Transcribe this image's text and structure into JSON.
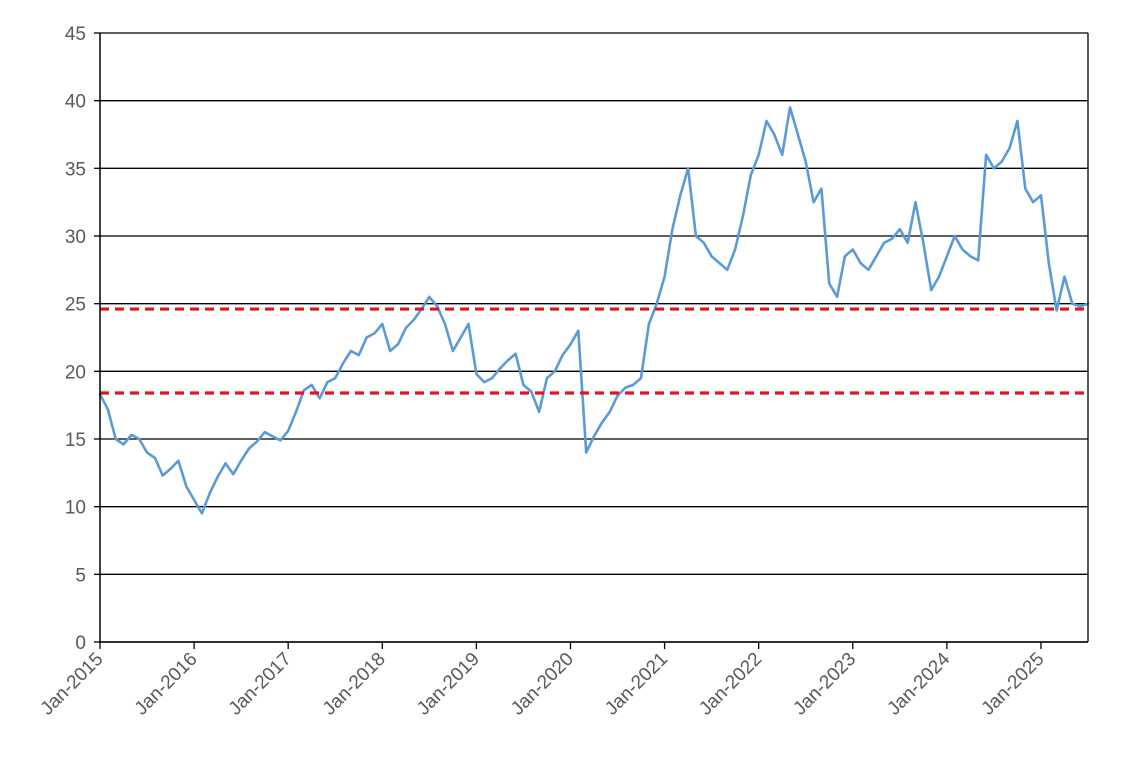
{
  "chart_data": {
    "type": "line",
    "title": "",
    "xlabel": "",
    "ylabel": "",
    "ylim": [
      0,
      45
    ],
    "y_ticks": [
      "0",
      "5",
      "10",
      "15",
      "20",
      "25",
      "30",
      "35",
      "40",
      "45"
    ],
    "x_ticks": [
      "Jan-2015",
      "Jan-2016",
      "Jan-2017",
      "Jan-2018",
      "Jan-2019",
      "Jan-2020",
      "Jan-2021",
      "Jan-2022",
      "Jan-2023",
      "Jan-2024",
      "Jan-2025"
    ],
    "xlim": [
      "2015-01",
      "2025-07"
    ],
    "grid": "horizontal",
    "legend": "none",
    "series": [
      {
        "color": "#5B9BD5",
        "x": [
          "2015-01",
          "2015-02",
          "2015-03",
          "2015-04",
          "2015-05",
          "2015-06",
          "2015-07",
          "2015-08",
          "2015-09",
          "2015-10",
          "2015-11",
          "2015-12",
          "2016-01",
          "2016-02",
          "2016-03",
          "2016-04",
          "2016-05",
          "2016-06",
          "2016-07",
          "2016-08",
          "2016-09",
          "2016-10",
          "2016-11",
          "2016-12",
          "2017-01",
          "2017-02",
          "2017-03",
          "2017-04",
          "2017-05",
          "2017-06",
          "2017-07",
          "2017-08",
          "2017-09",
          "2017-10",
          "2017-11",
          "2017-12",
          "2018-01",
          "2018-02",
          "2018-03",
          "2018-04",
          "2018-05",
          "2018-06",
          "2018-07",
          "2018-08",
          "2018-09",
          "2018-10",
          "2018-11",
          "2018-12",
          "2019-01",
          "2019-02",
          "2019-03",
          "2019-04",
          "2019-05",
          "2019-06",
          "2019-07",
          "2019-08",
          "2019-09",
          "2019-10",
          "2019-11",
          "2019-12",
          "2020-01",
          "2020-02",
          "2020-03",
          "2020-04",
          "2020-05",
          "2020-06",
          "2020-07",
          "2020-08",
          "2020-09",
          "2020-10",
          "2020-11",
          "2020-12",
          "2021-01",
          "2021-02",
          "2021-03",
          "2021-04",
          "2021-05",
          "2021-06",
          "2021-07",
          "2021-08",
          "2021-09",
          "2021-10",
          "2021-11",
          "2021-12",
          "2022-01",
          "2022-02",
          "2022-03",
          "2022-04",
          "2022-05",
          "2022-06",
          "2022-07",
          "2022-08",
          "2022-09",
          "2022-10",
          "2022-11",
          "2022-12",
          "2023-01",
          "2023-02",
          "2023-03",
          "2023-04",
          "2023-05",
          "2023-06",
          "2023-07",
          "2023-08",
          "2023-09",
          "2023-10",
          "2023-11",
          "2023-12",
          "2024-01",
          "2024-02",
          "2024-03",
          "2024-04",
          "2024-05",
          "2024-06",
          "2024-07",
          "2024-08",
          "2024-09",
          "2024-10",
          "2024-11",
          "2024-12",
          "2025-01",
          "2025-02",
          "2025-03",
          "2025-04",
          "2025-05",
          "2025-06",
          "2025-07"
        ],
        "values": [
          18.3,
          17.2,
          15.0,
          14.6,
          15.3,
          15.0,
          14.0,
          13.6,
          12.3,
          12.8,
          13.4,
          11.5,
          10.5,
          9.5,
          11.0,
          12.2,
          13.2,
          12.4,
          13.4,
          14.3,
          14.8,
          15.5,
          15.2,
          14.9,
          15.6,
          17.0,
          18.6,
          19.0,
          18.0,
          19.2,
          19.5,
          20.6,
          21.5,
          21.2,
          22.5,
          22.8,
          23.5,
          21.5,
          22.0,
          23.2,
          23.8,
          24.6,
          25.5,
          24.8,
          23.5,
          21.5,
          22.5,
          23.5,
          19.8,
          19.2,
          19.5,
          20.2,
          20.8,
          21.3,
          19.0,
          18.5,
          17.0,
          19.5,
          20.0,
          21.2,
          22.0,
          23.0,
          14.0,
          15.2,
          16.2,
          17.0,
          18.2,
          18.8,
          19.0,
          19.5,
          23.5,
          25.0,
          27.0,
          30.5,
          33.0,
          35.0,
          30.0,
          29.5,
          28.5,
          28.0,
          27.5,
          29.0,
          31.5,
          34.5,
          36.0,
          38.5,
          37.5,
          36.0,
          39.5,
          37.5,
          35.5,
          32.5,
          33.5,
          26.5,
          25.5,
          28.5,
          29.0,
          28.0,
          27.5,
          28.5,
          29.5,
          29.8,
          30.5,
          29.5,
          32.5,
          29.5,
          26.0,
          27.0,
          28.5,
          30.0,
          29.0,
          28.5,
          28.2,
          36.0,
          35.0,
          35.5,
          36.5,
          38.5,
          33.5,
          32.5,
          33.0,
          28.0,
          24.5,
          27.0,
          25.0,
          24.8,
          25.0
        ]
      }
    ],
    "reference_lines": [
      {
        "y": 24.6,
        "color": "#E0141E",
        "style": "dashed"
      },
      {
        "y": 18.4,
        "color": "#E0141E",
        "style": "dashed"
      }
    ]
  }
}
